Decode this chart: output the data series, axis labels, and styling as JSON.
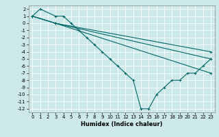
{
  "xlabel": "Humidex (Indice chaleur)",
  "bg_color": "#cce8e8",
  "grid_color": "#ffffff",
  "line_color": "#006666",
  "xlim": [
    -0.5,
    23.5
  ],
  "ylim": [
    -12.5,
    2.5
  ],
  "xticks": [
    0,
    1,
    2,
    3,
    4,
    5,
    6,
    7,
    8,
    9,
    10,
    11,
    12,
    13,
    14,
    15,
    16,
    17,
    18,
    19,
    20,
    21,
    22,
    23
  ],
  "yticks": [
    2,
    1,
    0,
    -1,
    -2,
    -3,
    -4,
    -5,
    -6,
    -7,
    -8,
    -9,
    -10,
    -11,
    -12
  ],
  "lines": [
    {
      "x": [
        0,
        1,
        3,
        4,
        5,
        6,
        7,
        8,
        9,
        10,
        11,
        12,
        13,
        14,
        15,
        16,
        17,
        18,
        19,
        20,
        21,
        22,
        23
      ],
      "y": [
        1,
        2,
        1,
        1,
        0,
        -1,
        -2,
        -3,
        -4,
        -5,
        -6,
        -7,
        -8,
        -12,
        -12,
        -10,
        -9,
        -8,
        -8,
        -7,
        -7,
        -6,
        -5
      ]
    },
    {
      "x": [
        0,
        3,
        23
      ],
      "y": [
        1,
        0,
        -4
      ]
    },
    {
      "x": [
        0,
        3,
        23
      ],
      "y": [
        1,
        0,
        -5
      ]
    },
    {
      "x": [
        0,
        3,
        23
      ],
      "y": [
        1,
        0,
        -7
      ]
    }
  ],
  "marker": "+",
  "markersize": 3,
  "linewidth": 0.8,
  "tick_fontsize": 5,
  "label_fontsize": 6
}
